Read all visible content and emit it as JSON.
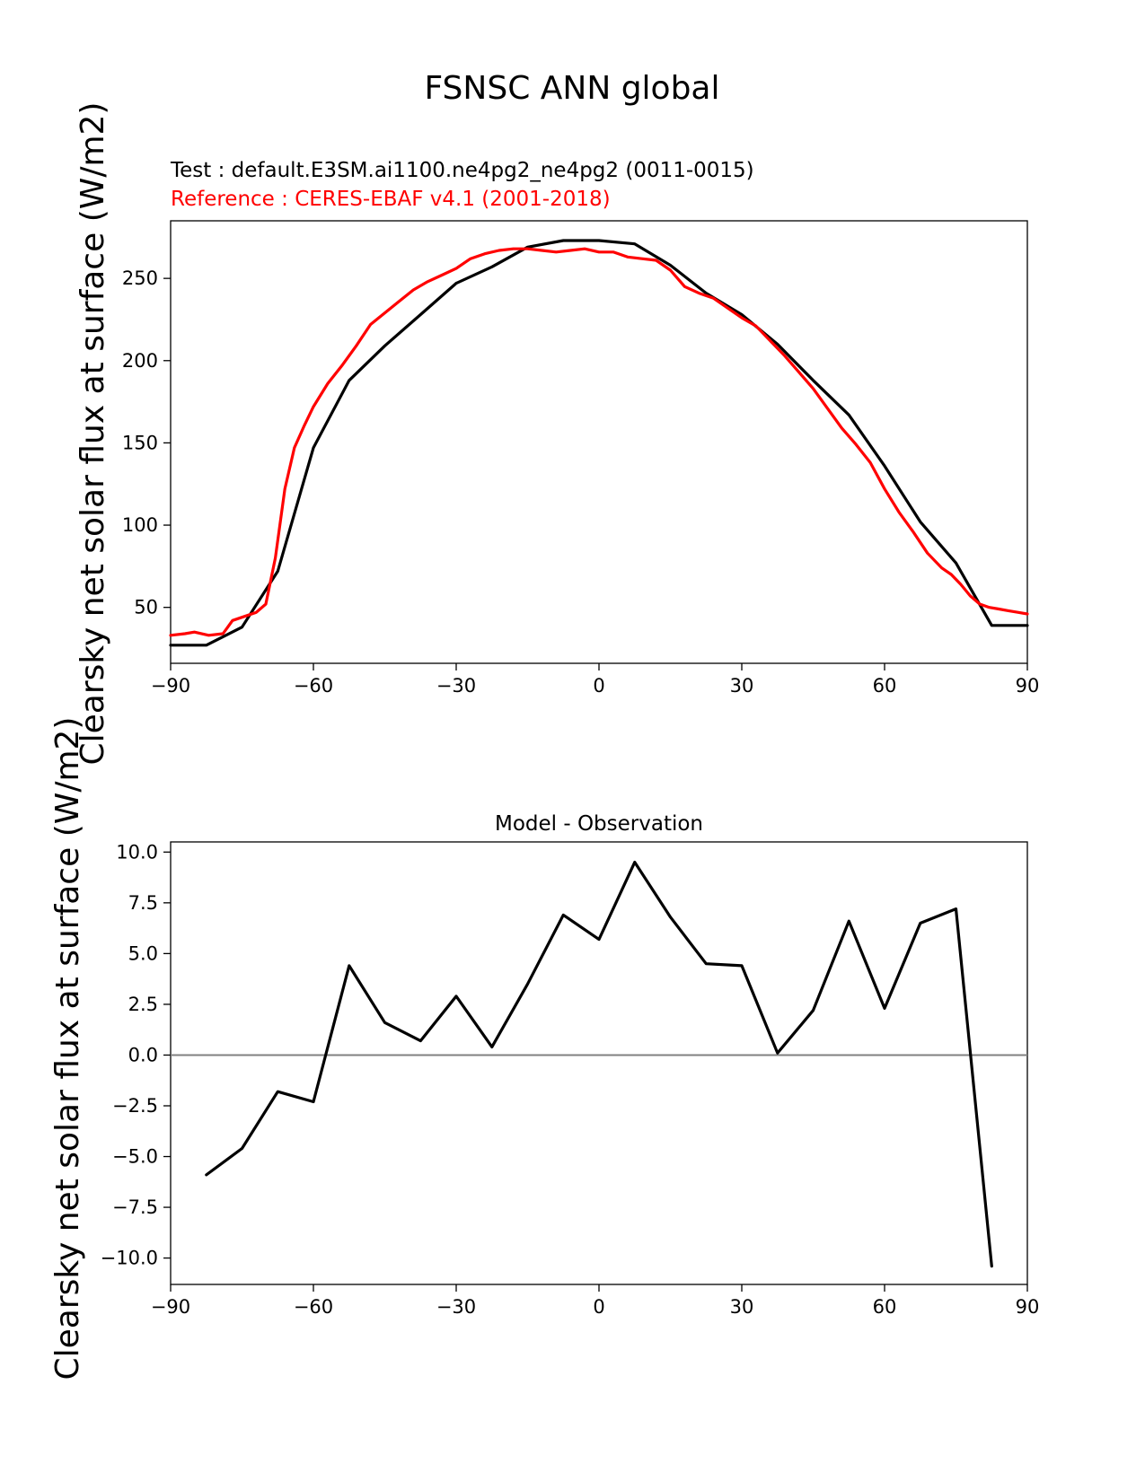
{
  "figure": {
    "suptitle": "FSNSC ANN global"
  },
  "colors": {
    "test": "#000000",
    "reference": "#ff0000",
    "zero_line": "#808080",
    "axes": "#000000"
  },
  "chart_data": [
    {
      "type": "line",
      "title_test": "Test : default.E3SM.ai1100.ne4pg2_ne4pg2 (0011-0015)",
      "title_reference": "Reference : CERES-EBAF v4.1 (2001-2018)",
      "xlabel": "",
      "ylabel": "Clearsky net solar flux at surface (W/m2)",
      "xlim": [
        -90,
        90
      ],
      "ylim": [
        16,
        285
      ],
      "xticks": [
        -90,
        -60,
        -30,
        0,
        30,
        60,
        90
      ],
      "xtick_labels": [
        "−90",
        "−60",
        "−30",
        "0",
        "30",
        "60",
        "90"
      ],
      "yticks": [
        50,
        100,
        150,
        200,
        250
      ],
      "ytick_labels": [
        "50",
        "100",
        "150",
        "200",
        "250"
      ],
      "grid": false,
      "series": [
        {
          "key": "test",
          "x": [
            -90,
            -82.5,
            -75,
            -67.5,
            -60,
            -52.5,
            -45,
            -37.5,
            -30,
            -22.5,
            -15,
            -7.5,
            0,
            7.5,
            15,
            22.5,
            30,
            37.5,
            45,
            52.5,
            60,
            67.5,
            75,
            82.5,
            90
          ],
          "y": [
            27,
            27,
            38,
            72,
            147,
            188,
            209,
            228,
            247,
            257,
            269,
            273,
            273,
            271,
            258,
            241,
            228,
            210,
            188,
            167,
            136,
            102,
            77,
            39,
            39
          ]
        },
        {
          "key": "reference",
          "x": [
            -90,
            -87,
            -85,
            -82,
            -79,
            -77,
            -75,
            -72,
            -70,
            -68,
            -66,
            -64,
            -62,
            -60,
            -57,
            -54,
            -51,
            -48,
            -45,
            -42,
            -39,
            -36,
            -33,
            -30,
            -27,
            -24,
            -21,
            -18,
            -15,
            -12,
            -9,
            -6,
            -3,
            0,
            3,
            6,
            9,
            12,
            15,
            18,
            21,
            24,
            27,
            30,
            33,
            36,
            39,
            42,
            45,
            48,
            51,
            54,
            57,
            60,
            63,
            66,
            69,
            72,
            74,
            76,
            78,
            80,
            82,
            84,
            86,
            88,
            90
          ],
          "y": [
            33,
            34,
            35,
            33,
            34,
            42,
            44,
            47,
            52,
            80,
            122,
            147,
            160,
            172,
            186,
            197,
            209,
            222,
            229,
            236,
            243,
            248,
            252,
            256,
            262,
            265,
            267,
            268,
            268,
            267,
            266,
            267,
            268,
            266,
            266,
            263,
            262,
            261,
            255,
            245,
            241,
            238,
            232,
            226,
            221,
            212,
            203,
            193,
            183,
            171,
            159,
            149,
            138,
            122,
            108,
            96,
            83,
            74,
            70,
            64,
            57,
            52,
            50,
            49,
            48,
            47,
            46
          ]
        }
      ]
    },
    {
      "type": "line",
      "title": "Model - Observation",
      "xlabel": "",
      "ylabel": "Clearsky net solar flux at surface (W/m2)",
      "xlim": [
        -90,
        90
      ],
      "ylim": [
        -11.3,
        10.5
      ],
      "xticks": [
        -90,
        -60,
        -30,
        0,
        30,
        60,
        90
      ],
      "xtick_labels": [
        "−90",
        "−60",
        "−30",
        "0",
        "30",
        "60",
        "90"
      ],
      "yticks": [
        10,
        7.5,
        5,
        2.5,
        0,
        -2.5,
        -5,
        -7.5,
        -10
      ],
      "ytick_labels": [
        "10.0",
        "7.5",
        "5.0",
        "2.5",
        "0.0",
        "−2.5",
        "−5.0",
        "−7.5",
        "−10.0"
      ],
      "zero_line": 0,
      "grid": false,
      "series": [
        {
          "key": "difference",
          "x": [
            -82.5,
            -75,
            -67.5,
            -60,
            -52.5,
            -45,
            -37.5,
            -30,
            -22.5,
            -15,
            -7.5,
            0,
            7.5,
            15,
            22.5,
            30,
            37.5,
            45,
            52.5,
            60,
            67.5,
            75,
            82.5
          ],
          "y": [
            -5.9,
            -4.6,
            -1.8,
            -2.3,
            4.4,
            1.6,
            0.7,
            2.9,
            0.4,
            3.5,
            6.9,
            5.7,
            9.5,
            6.8,
            4.5,
            4.4,
            0.1,
            2.2,
            6.6,
            2.3,
            6.5,
            7.2,
            -10.4
          ]
        }
      ]
    }
  ]
}
